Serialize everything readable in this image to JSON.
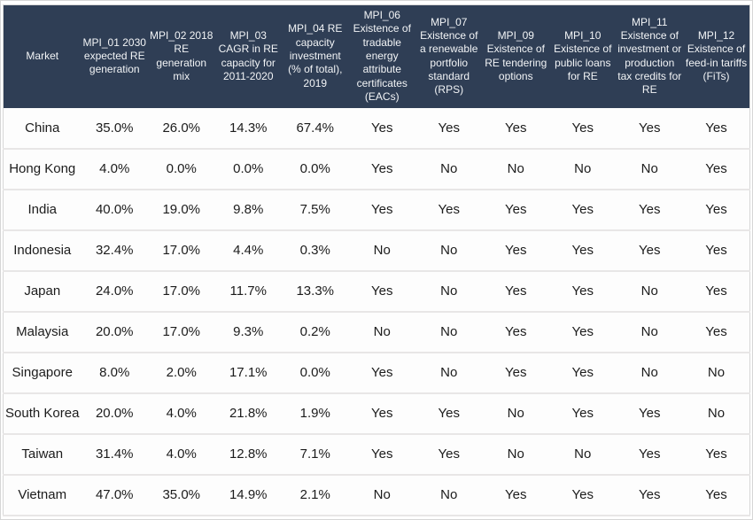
{
  "figure": {
    "colors": {
      "header_bg": "#2f3e55",
      "header_text": "#f2f4f6",
      "body_text": "#1c1c1c",
      "row_bg": "#fdfdfd",
      "divider": "#e8e6e6",
      "frame": "#d6d6d6"
    }
  },
  "table": {
    "columns": [
      {
        "id": "market",
        "label": "Market"
      },
      {
        "id": "mpi_01",
        "label": "MPI_01 2030 expected RE generation"
      },
      {
        "id": "mpi_02",
        "label": "MPI_02 2018 RE generation mix"
      },
      {
        "id": "mpi_03",
        "label": "MPI_03 CAGR in RE capacity for 2011-2020"
      },
      {
        "id": "mpi_04",
        "label": "MPI_04 RE capacity investment (% of total), 2019"
      },
      {
        "id": "mpi_06",
        "label": "MPI_06 Existence of tradable energy attribute certificates (EACs)"
      },
      {
        "id": "mpi_07",
        "label": "MPI_07 Existence of a renewable portfolio standard (RPS)"
      },
      {
        "id": "mpi_09",
        "label": "MPI_09 Existence of RE tendering options"
      },
      {
        "id": "mpi_10",
        "label": "MPI_10 Existence of public loans for RE"
      },
      {
        "id": "mpi_11",
        "label": "MPI_11 Existence of investment or production tax credits for RE"
      },
      {
        "id": "mpi_12",
        "label": "MPI_12 Existence of feed-in tariffs (FiTs)"
      }
    ],
    "rows": [
      {
        "market": "China",
        "values": [
          "35.0%",
          "26.0%",
          "14.3%",
          "67.4%",
          "Yes",
          "Yes",
          "Yes",
          "Yes",
          "Yes",
          "Yes"
        ]
      },
      {
        "market": "Hong Kong",
        "values": [
          "4.0%",
          "0.0%",
          "0.0%",
          "0.0%",
          "Yes",
          "No",
          "No",
          "No",
          "No",
          "Yes"
        ]
      },
      {
        "market": "India",
        "values": [
          "40.0%",
          "19.0%",
          "9.8%",
          "7.5%",
          "Yes",
          "Yes",
          "Yes",
          "Yes",
          "Yes",
          "Yes"
        ]
      },
      {
        "market": "Indonesia",
        "values": [
          "32.4%",
          "17.0%",
          "4.4%",
          "0.3%",
          "No",
          "No",
          "Yes",
          "Yes",
          "Yes",
          "Yes"
        ]
      },
      {
        "market": "Japan",
        "values": [
          "24.0%",
          "17.0%",
          "11.7%",
          "13.3%",
          "Yes",
          "No",
          "Yes",
          "Yes",
          "No",
          "Yes"
        ]
      },
      {
        "market": "Malaysia",
        "values": [
          "20.0%",
          "17.0%",
          "9.3%",
          "0.2%",
          "No",
          "No",
          "Yes",
          "Yes",
          "No",
          "Yes"
        ]
      },
      {
        "market": "Singapore",
        "values": [
          "8.0%",
          "2.0%",
          "17.1%",
          "0.0%",
          "Yes",
          "No",
          "Yes",
          "Yes",
          "No",
          "No"
        ]
      },
      {
        "market": "South Korea",
        "values": [
          "20.0%",
          "4.0%",
          "21.8%",
          "1.9%",
          "Yes",
          "Yes",
          "No",
          "Yes",
          "Yes",
          "No"
        ]
      },
      {
        "market": "Taiwan",
        "values": [
          "31.4%",
          "4.0%",
          "12.8%",
          "7.1%",
          "Yes",
          "Yes",
          "No",
          "No",
          "Yes",
          "Yes"
        ]
      },
      {
        "market": "Vietnam",
        "values": [
          "47.0%",
          "35.0%",
          "14.9%",
          "2.1%",
          "No",
          "No",
          "Yes",
          "Yes",
          "Yes",
          "Yes"
        ]
      }
    ]
  },
  "chart_data": {
    "type": "table",
    "title": "",
    "columns": [
      "Market",
      "MPI_01 2030 expected RE generation",
      "MPI_02 2018 RE generation mix",
      "MPI_03 CAGR in RE capacity for 2011-2020",
      "MPI_04 RE capacity investment (% of total), 2019",
      "MPI_06 Existence of tradable energy attribute certificates (EACs)",
      "MPI_07 Existence of a renewable portfolio standard (RPS)",
      "MPI_09 Existence of RE tendering options",
      "MPI_10 Existence of public loans for RE",
      "MPI_11 Existence of investment or production tax credits for RE",
      "MPI_12 Existence of feed-in tariffs (FiTs)"
    ],
    "rows": [
      [
        "China",
        "35.0%",
        "26.0%",
        "14.3%",
        "67.4%",
        "Yes",
        "Yes",
        "Yes",
        "Yes",
        "Yes",
        "Yes"
      ],
      [
        "Hong Kong",
        "4.0%",
        "0.0%",
        "0.0%",
        "0.0%",
        "Yes",
        "No",
        "No",
        "No",
        "No",
        "Yes"
      ],
      [
        "India",
        "40.0%",
        "19.0%",
        "9.8%",
        "7.5%",
        "Yes",
        "Yes",
        "Yes",
        "Yes",
        "Yes",
        "Yes"
      ],
      [
        "Indonesia",
        "32.4%",
        "17.0%",
        "4.4%",
        "0.3%",
        "No",
        "No",
        "Yes",
        "Yes",
        "Yes",
        "Yes"
      ],
      [
        "Japan",
        "24.0%",
        "17.0%",
        "11.7%",
        "13.3%",
        "Yes",
        "No",
        "Yes",
        "Yes",
        "No",
        "Yes"
      ],
      [
        "Malaysia",
        "20.0%",
        "17.0%",
        "9.3%",
        "0.2%",
        "No",
        "No",
        "Yes",
        "Yes",
        "No",
        "Yes"
      ],
      [
        "Singapore",
        "8.0%",
        "2.0%",
        "17.1%",
        "0.0%",
        "Yes",
        "No",
        "Yes",
        "Yes",
        "No",
        "No"
      ],
      [
        "South Korea",
        "20.0%",
        "4.0%",
        "21.8%",
        "1.9%",
        "Yes",
        "Yes",
        "No",
        "Yes",
        "Yes",
        "No"
      ],
      [
        "Taiwan",
        "31.4%",
        "4.0%",
        "12.8%",
        "7.1%",
        "Yes",
        "Yes",
        "No",
        "No",
        "Yes",
        "Yes"
      ],
      [
        "Vietnam",
        "47.0%",
        "35.0%",
        "14.9%",
        "2.1%",
        "No",
        "No",
        "Yes",
        "Yes",
        "Yes",
        "Yes"
      ]
    ],
    "layout": {
      "header_rows": 1,
      "grid": "horizontal-dividers-only",
      "header_style": "dark-navy-background-white-text",
      "value_columns_format": "percent-or-yes-no"
    }
  }
}
